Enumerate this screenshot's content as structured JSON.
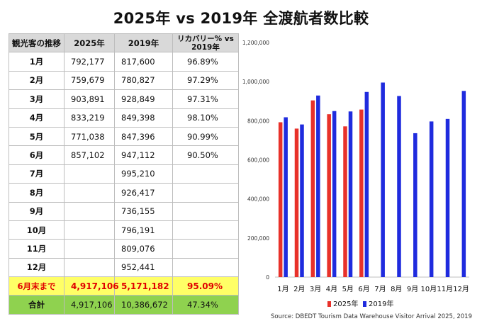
{
  "title": "2025年 vs 2019年 全渡航者数比較",
  "table": {
    "headers": [
      "観光客の推移",
      "2025年",
      "2019年",
      "リカバリー% vs 2019年"
    ],
    "rows": [
      [
        "1月",
        "792,177",
        "817,600",
        "96.89%"
      ],
      [
        "2月",
        "759,679",
        "780,827",
        "97.29%"
      ],
      [
        "3月",
        "903,891",
        "928,849",
        "97.31%"
      ],
      [
        "4月",
        "833,219",
        "849,398",
        "98.10%"
      ],
      [
        "5月",
        "771,038",
        "847,396",
        "90.99%"
      ],
      [
        "6月",
        "857,102",
        "947,112",
        "90.50%"
      ],
      [
        "7月",
        "",
        "995,210",
        ""
      ],
      [
        "8月",
        "",
        "926,417",
        ""
      ],
      [
        "9月",
        "",
        "736,155",
        ""
      ],
      [
        "10月",
        "",
        "796,191",
        ""
      ],
      [
        "11月",
        "",
        "809,076",
        ""
      ],
      [
        "12月",
        "",
        "952,441",
        ""
      ]
    ],
    "ytd": [
      "6月末まで",
      "4,917,106",
      "5,171,182",
      "95.09%"
    ],
    "total": [
      "合計",
      "4,917,106",
      "10,386,672",
      "47.34%"
    ]
  },
  "chart_data": {
    "type": "bar",
    "categories": [
      "1月",
      "2月",
      "3月",
      "4月",
      "5月",
      "6月",
      "7月",
      "8月",
      "9月",
      "10月",
      "11月",
      "12月"
    ],
    "series": [
      {
        "name": "2025年",
        "color": "#e8312a",
        "values": [
          792177,
          759679,
          903891,
          833219,
          771038,
          857102,
          null,
          null,
          null,
          null,
          null,
          null
        ]
      },
      {
        "name": "2019年",
        "color": "#1f2bde",
        "values": [
          817600,
          780827,
          928849,
          849398,
          847396,
          947112,
          995210,
          926417,
          736155,
          796191,
          809076,
          952441
        ]
      }
    ],
    "ylim": [
      0,
      1200000
    ],
    "yticks": [
      0,
      200000,
      400000,
      600000,
      800000,
      1000000,
      1200000
    ],
    "ytick_labels": [
      "0",
      "200,000",
      "400,000",
      "600,000",
      "800,000",
      "1,000,000",
      "1,200,000"
    ],
    "grid": false,
    "legend": "bottom"
  },
  "source": "Source: DBEDT Tourism Data Warehouse Visitor Arrival 2025, 2019"
}
